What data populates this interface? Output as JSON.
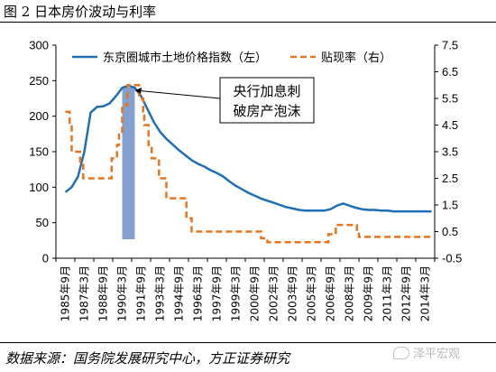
{
  "figure_title": "图 2  日本房价波动与利率",
  "source_text": "数据来源：国务院发展研究中心，方正证券研究",
  "watermark_text": "泽平宏观",
  "colors": {
    "series1": "#1f6fb8",
    "series2": "#e8741b",
    "shade": "#6f8fc9",
    "axis": "#000000"
  },
  "chart_data": {
    "type": "line",
    "annotation": [
      "央行加息刺",
      "破房产泡沫"
    ],
    "shaded_period": {
      "from": "1990年3月",
      "to": "1991年3月"
    },
    "x_ticks": [
      "1985年9月",
      "1987年3月",
      "1988年9月",
      "1990年3月",
      "1991年9月",
      "1993年3月",
      "1994年9月",
      "1996年3月",
      "1997年9月",
      "1999年3月",
      "2000年9月",
      "2002年3月",
      "2003年9月",
      "2005年3月",
      "2006年9月",
      "2008年3月",
      "2009年9月",
      "2011年3月",
      "2012年9月",
      "2014年3月"
    ],
    "y_left": {
      "lim": [
        0,
        300
      ],
      "ticks": [
        "0",
        "50",
        "100",
        "150",
        "200",
        "250",
        "300"
      ]
    },
    "y_right": {
      "lim": [
        -0.5,
        7.5
      ],
      "ticks": [
        "-0.5",
        "0.5",
        "1.5",
        "2.5",
        "3.5",
        "4.5",
        "5.5",
        "6.5",
        "7.5"
      ]
    },
    "series": [
      {
        "name": "东京圈城市土地价格指数（左）",
        "axis": "left",
        "style": "solid",
        "points": [
          [
            "1985年9月",
            93
          ],
          [
            "1986年3月",
            100
          ],
          [
            "1986年9月",
            115
          ],
          [
            "1987年3月",
            150
          ],
          [
            "1987年9月",
            205
          ],
          [
            "1988年3月",
            213
          ],
          [
            "1988年9月",
            214
          ],
          [
            "1989年3月",
            218
          ],
          [
            "1989年9月",
            228
          ],
          [
            "1990年3月",
            240
          ],
          [
            "1990年9月",
            243
          ],
          [
            "1991年3月",
            240
          ],
          [
            "1991年9月",
            228
          ],
          [
            "1992年3月",
            210
          ],
          [
            "1992年9月",
            192
          ],
          [
            "1993年3月",
            178
          ],
          [
            "1993年9月",
            168
          ],
          [
            "1994年3月",
            160
          ],
          [
            "1994年9月",
            152
          ],
          [
            "1995年3月",
            145
          ],
          [
            "1995年9月",
            138
          ],
          [
            "1996年3月",
            133
          ],
          [
            "1996年9月",
            129
          ],
          [
            "1997年3月",
            124
          ],
          [
            "1997年9月",
            120
          ],
          [
            "1998年3月",
            115
          ],
          [
            "1998年9月",
            108
          ],
          [
            "1999年3月",
            102
          ],
          [
            "1999年9月",
            97
          ],
          [
            "2000年3月",
            92
          ],
          [
            "2000年9月",
            88
          ],
          [
            "2001年3月",
            84
          ],
          [
            "2001年9月",
            81
          ],
          [
            "2002年3月",
            78
          ],
          [
            "2002年9月",
            75
          ],
          [
            "2003年3月",
            72
          ],
          [
            "2003年9月",
            70
          ],
          [
            "2004年3月",
            68
          ],
          [
            "2004年9月",
            67
          ],
          [
            "2005年3月",
            67
          ],
          [
            "2005年9月",
            67
          ],
          [
            "2006年3月",
            67
          ],
          [
            "2006年9月",
            69
          ],
          [
            "2007年3月",
            74
          ],
          [
            "2007年9月",
            77
          ],
          [
            "2008年3月",
            74
          ],
          [
            "2008年9月",
            71
          ],
          [
            "2009年3月",
            69
          ],
          [
            "2009年9月",
            68
          ],
          [
            "2010年3月",
            68
          ],
          [
            "2010年9月",
            67
          ],
          [
            "2011年3月",
            67
          ],
          [
            "2011年9月",
            66
          ],
          [
            "2012年3月",
            66
          ],
          [
            "2012年9月",
            66
          ],
          [
            "2013年3月",
            66
          ],
          [
            "2013年9月",
            66
          ],
          [
            "2014年3月",
            66
          ],
          [
            "2014年9月",
            66
          ]
        ]
      },
      {
        "name": "贴现率（右）",
        "axis": "right",
        "style": "dashed",
        "points": [
          [
            "1985年9月",
            5.0
          ],
          [
            "1986年1月",
            4.5
          ],
          [
            "1986年3月",
            3.5
          ],
          [
            "1986年11月",
            3.0
          ],
          [
            "1987年2月",
            2.5
          ],
          [
            "1989年5月",
            3.25
          ],
          [
            "1989年10月",
            3.75
          ],
          [
            "1989年12月",
            4.25
          ],
          [
            "1990年3月",
            5.25
          ],
          [
            "1990年8月",
            6.0
          ],
          [
            "1991年7月",
            5.5
          ],
          [
            "1991年11月",
            5.0
          ],
          [
            "1991年12月",
            4.5
          ],
          [
            "1992年4月",
            3.75
          ],
          [
            "1992年7月",
            3.25
          ],
          [
            "1993年2月",
            2.5
          ],
          [
            "1993年9月",
            1.75
          ],
          [
            "1995年4月",
            1.0
          ],
          [
            "1995年9月",
            0.5
          ],
          [
            "2001年1月",
            0.5
          ],
          [
            "2001年3月",
            0.25
          ],
          [
            "2001年9月",
            0.1
          ],
          [
            "2006年7月",
            0.4
          ],
          [
            "2007年2月",
            0.75
          ],
          [
            "2008年10月",
            0.5
          ],
          [
            "2008年12月",
            0.3
          ],
          [
            "2014年9月",
            0.3
          ]
        ]
      }
    ]
  }
}
